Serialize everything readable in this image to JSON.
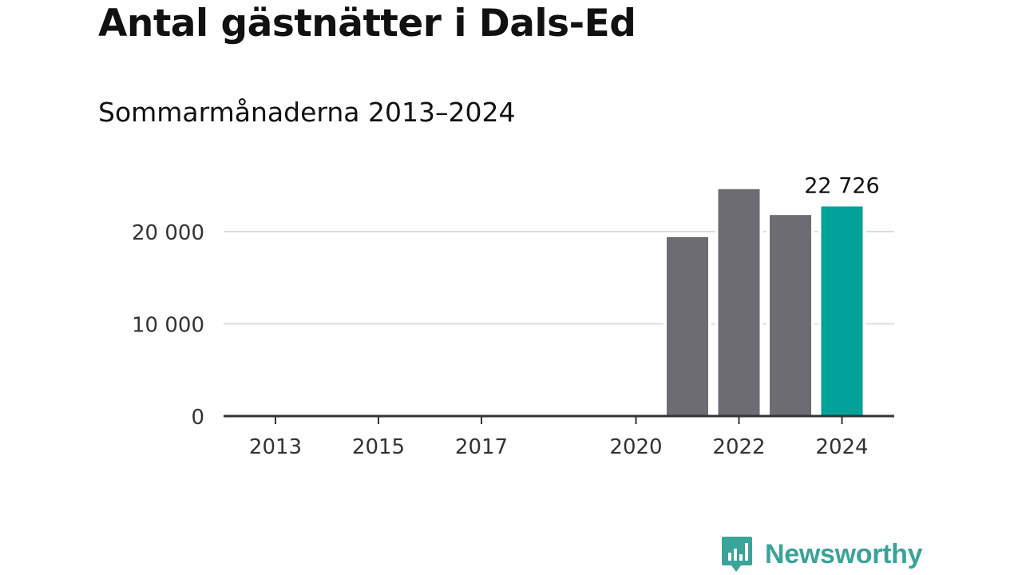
{
  "header": {
    "title": "Antal gästnätter i Dals-Ed",
    "subtitle": "Sommarmånaderna 2013–2024"
  },
  "brand": {
    "name": "Newsworthy",
    "icon": "bar-chart-speech-bubble-icon",
    "color": "#3aa39a"
  },
  "chart_data": {
    "type": "bar",
    "title": "Antal gästnätter i Dals-Ed",
    "subtitle": "Sommarmånaderna 2013–2024",
    "xlabel": "",
    "ylabel": "",
    "categories": [
      "2013",
      "2014",
      "2015",
      "2016",
      "2017",
      "2018",
      "2019",
      "2020",
      "2021",
      "2022",
      "2023",
      "2024"
    ],
    "values": [
      null,
      null,
      null,
      null,
      null,
      null,
      null,
      null,
      19400,
      24600,
      21800,
      22726
    ],
    "ylim": [
      0,
      25000
    ],
    "y_ticks": [
      0,
      10000,
      20000
    ],
    "y_tick_labels": [
      "0",
      "10 000",
      "20 000"
    ],
    "x_tick_labels": [
      "2013",
      "2015",
      "2017",
      "2020",
      "2022",
      "2024"
    ],
    "highlight": {
      "category": "2024",
      "label": "22 726"
    },
    "grid": "horizontal",
    "colors": {
      "bar": "#6d6c73",
      "highlight": "#00a29a",
      "grid": "#dddddd",
      "axis": "#333333"
    }
  }
}
